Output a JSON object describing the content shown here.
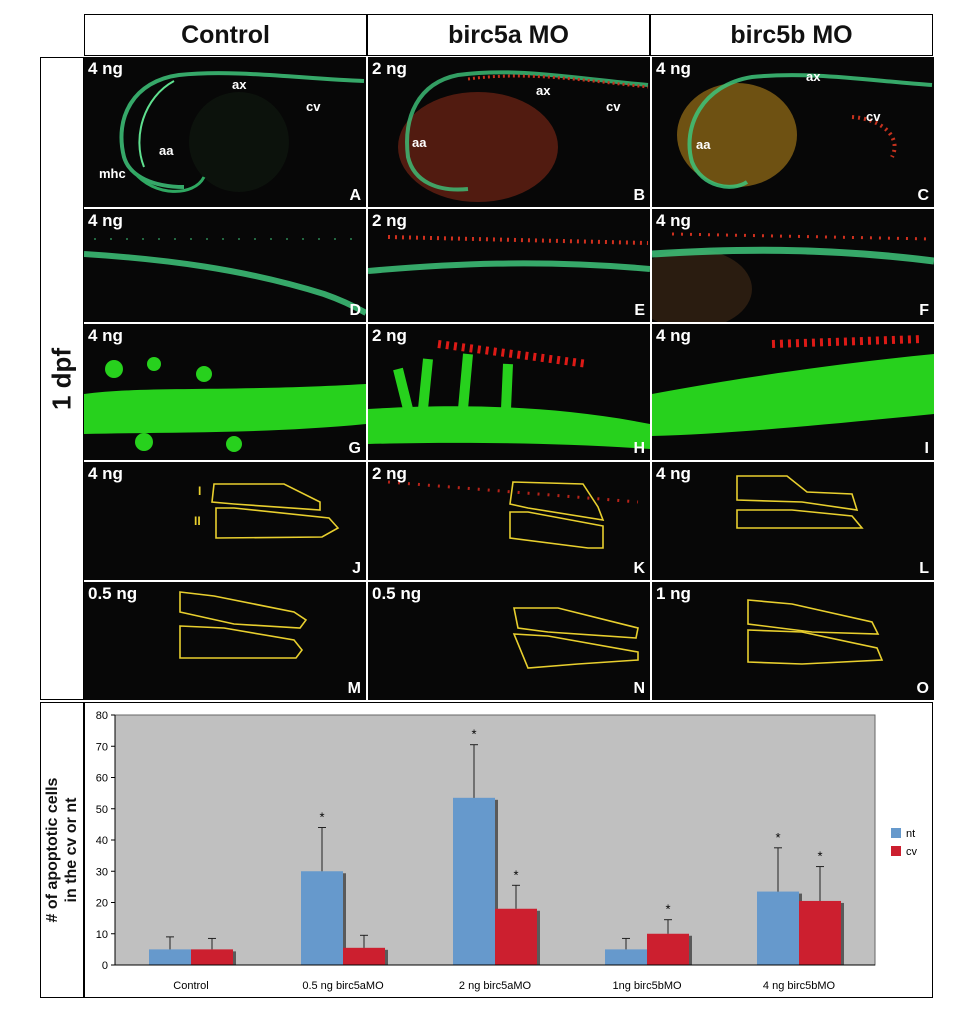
{
  "columns": [
    "Control",
    "birc5a MO",
    "birc5b MO"
  ],
  "row_label": "1 dpf",
  "panels": [
    {
      "letter": "A",
      "dose": "4 ng",
      "annotations": [
        "ax",
        "cv",
        "aa",
        "mhc"
      ]
    },
    {
      "letter": "B",
      "dose": "2 ng",
      "annotations": [
        "ax",
        "cv",
        "aa"
      ]
    },
    {
      "letter": "C",
      "dose": "4 ng",
      "annotations": [
        "ax",
        "cv",
        "aa"
      ]
    },
    {
      "letter": "D",
      "dose": "4 ng",
      "annotations": []
    },
    {
      "letter": "E",
      "dose": "2 ng",
      "annotations": []
    },
    {
      "letter": "F",
      "dose": "4 ng",
      "annotations": []
    },
    {
      "letter": "G",
      "dose": "4 ng",
      "annotations": []
    },
    {
      "letter": "H",
      "dose": "2 ng",
      "annotations": []
    },
    {
      "letter": "I",
      "dose": "4 ng",
      "annotations": []
    },
    {
      "letter": "J",
      "dose": "4 ng",
      "annotations": [
        "I",
        "II"
      ]
    },
    {
      "letter": "K",
      "dose": "2 ng",
      "annotations": []
    },
    {
      "letter": "L",
      "dose": "4 ng",
      "annotations": []
    },
    {
      "letter": "M",
      "dose": "0.5 ng",
      "annotations": []
    },
    {
      "letter": "N",
      "dose": "0.5 ng",
      "annotations": []
    },
    {
      "letter": "O",
      "dose": "1 ng",
      "annotations": []
    }
  ],
  "chart_data": {
    "type": "bar",
    "ylabel": "# of apoptotic cells in the cv or nt",
    "ylim": [
      0,
      80
    ],
    "yticks": [
      0,
      10,
      20,
      30,
      40,
      50,
      60,
      70,
      80
    ],
    "categories": [
      "Control",
      "0.5 ng birc5aMO",
      "2 ng birc5aMO",
      "1ng birc5bMO",
      "4 ng birc5bMO"
    ],
    "series": [
      {
        "name": "nt",
        "color": "#6699cc",
        "values": [
          5,
          30,
          53.5,
          5,
          23.5
        ],
        "errors": [
          4,
          14,
          17,
          3.5,
          14
        ],
        "significant": [
          false,
          true,
          true,
          false,
          true
        ]
      },
      {
        "name": "cv",
        "color": "#cc1f2f",
        "values": [
          5,
          5.5,
          18,
          10,
          20.5
        ],
        "errors": [
          3.5,
          4,
          7.5,
          4.5,
          11
        ],
        "significant": [
          false,
          false,
          true,
          true,
          true
        ]
      }
    ],
    "significance_marker": "*",
    "legend_position": "right",
    "background": "#c0c0c0",
    "grid": false
  }
}
